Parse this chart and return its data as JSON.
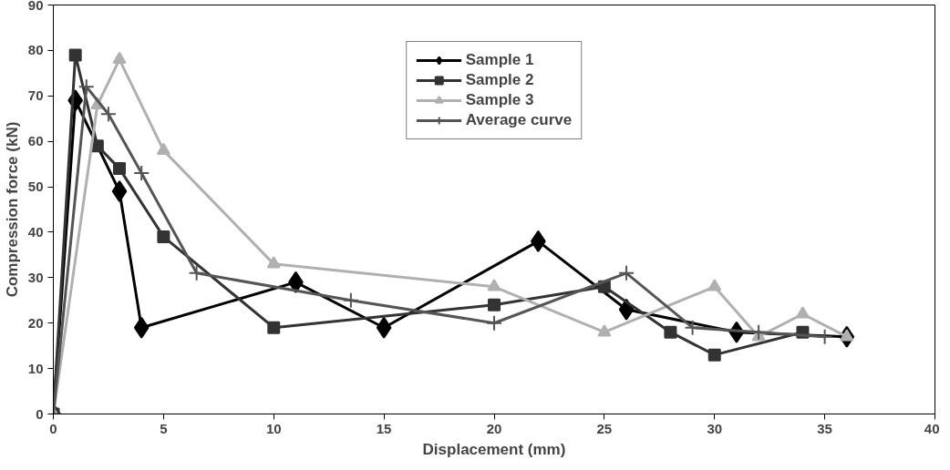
{
  "chart_data": {
    "type": "line",
    "xlabel": "Displacement (mm)",
    "ylabel": "Compression force (kN)",
    "xlim": [
      0,
      40
    ],
    "ylim": [
      0,
      90
    ],
    "xticks": [
      0,
      5,
      10,
      15,
      20,
      25,
      30,
      35,
      40
    ],
    "yticks": [
      0,
      10,
      20,
      30,
      40,
      50,
      60,
      70,
      80,
      90
    ],
    "grid": false,
    "legend": "top",
    "line_style": "solid",
    "series": [
      {
        "name": "Sample 1",
        "color": "#000000",
        "marker": "diamond",
        "x": [
          0,
          1,
          3,
          4,
          11,
          15,
          22,
          26,
          31,
          36
        ],
        "values": [
          0,
          69,
          49,
          19,
          29,
          19,
          38,
          23,
          18,
          17
        ]
      },
      {
        "name": "Sample 2",
        "color": "#333333",
        "marker": "square",
        "x": [
          0,
          1,
          2,
          3,
          5,
          10,
          20,
          25,
          28,
          30,
          34
        ],
        "values": [
          0,
          79,
          59,
          54,
          39,
          19,
          24,
          28,
          18,
          13,
          18
        ]
      },
      {
        "name": "Sample 3",
        "color": "#b0b0b0",
        "marker": "triangle",
        "x": [
          0,
          2,
          3,
          5,
          10,
          20,
          25,
          30,
          32,
          34,
          36
        ],
        "values": [
          0,
          68,
          78,
          58,
          33,
          28,
          18,
          28,
          17,
          22,
          17
        ]
      },
      {
        "name": "Average curve",
        "color": "#555555",
        "marker": "cross",
        "x": [
          0,
          1.5,
          2.5,
          4,
          6.5,
          13.5,
          20,
          26,
          29,
          32,
          35
        ],
        "values": [
          0,
          72,
          66,
          53,
          31,
          25,
          20,
          31,
          19,
          18,
          17
        ]
      }
    ]
  }
}
